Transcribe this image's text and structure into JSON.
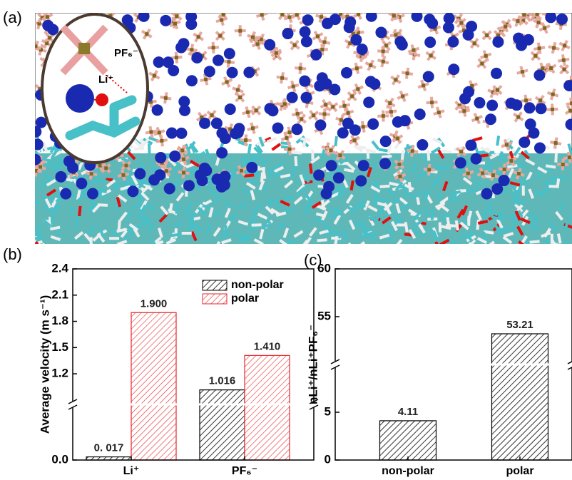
{
  "panel_labels": [
    "(a)",
    "(b)",
    "(c)"
  ],
  "image": {
    "labels": [
      "PF₆⁻",
      "Li⁺"
    ]
  },
  "chart_data": [
    {
      "type": "bar",
      "ylabel": "Average velocity (m s⁻¹)",
      "categories": [
        "Li⁺",
        "PF₆⁻"
      ],
      "series": [
        {
          "name": "non-polar",
          "color": "#000000",
          "values": [
            0.017,
            1.016
          ],
          "value_labels": [
            "0. 017",
            "1.016"
          ]
        },
        {
          "name": "polar",
          "color": "#e8262a",
          "values": [
            1.9,
            1.41
          ],
          "value_labels": [
            "1.900",
            "1.410"
          ]
        }
      ],
      "ylim": [
        0,
        2.4
      ],
      "ybreak": [
        0.3,
        0.85
      ],
      "yticks": [
        {
          "value": 0,
          "label": "0.0"
        },
        1.2,
        1.5,
        1.8,
        2.1,
        2.4
      ],
      "legend": "upper right"
    },
    {
      "type": "bar",
      "ylabel": "nLi⁺/nLi⁺PF₆⁻",
      "categories": [
        "non-polar",
        "polar"
      ],
      "values": [
        4.11,
        53.21
      ],
      "color": "#000000",
      "ylim": [
        0,
        60
      ],
      "ybreak": [
        10,
        50
      ],
      "yticks": [
        0,
        5,
        55,
        60
      ]
    }
  ]
}
